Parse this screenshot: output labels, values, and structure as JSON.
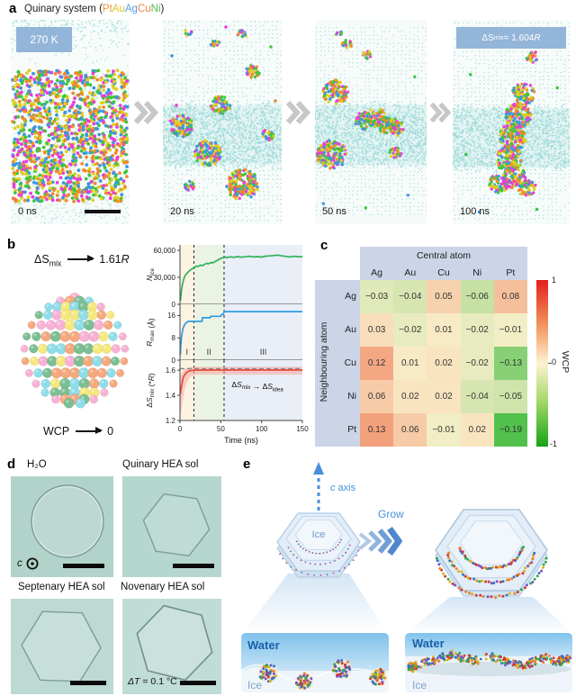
{
  "panel_a": {
    "label": "a",
    "title_prefix": "Quinary system (",
    "title_suffix": ")",
    "elements": [
      {
        "symbol": "Pt",
        "color": "#f0953e"
      },
      {
        "symbol": "Au",
        "color": "#dfc32a"
      },
      {
        "symbol": "Ag",
        "color": "#58a0e2"
      },
      {
        "symbol": "Cu",
        "color": "#ee8444"
      },
      {
        "symbol": "Ni",
        "color": "#4dbd4f"
      }
    ],
    "temperature_badge": "270 K",
    "entropy_badge": {
      "base": "ΔS",
      "sub": "mix",
      "rest": " = 1.604",
      "r": "R"
    },
    "snapshots": [
      {
        "time": "0 ns"
      },
      {
        "time": "20 ns"
      },
      {
        "time": "50 ns"
      },
      {
        "time": "100 ns"
      }
    ]
  },
  "panel_b": {
    "label": "b",
    "entropy": {
      "base": "ΔS",
      "sub": "mix",
      "value": "1.61",
      "r": "R"
    },
    "wcp": {
      "label": "WCP",
      "value": "0"
    }
  },
  "panel_c": {
    "label": "c"
  },
  "panel_d": {
    "label": "d",
    "images": [
      {
        "title": "H₂O"
      },
      {
        "title": "Quinary HEA sol"
      },
      {
        "title": "Septenary HEA sol"
      },
      {
        "title": "Novenary HEA sol"
      }
    ],
    "c_axis": "c",
    "delta_note": {
      "sym": "ΔT",
      "rest": " = 0.1 °C"
    }
  },
  "panel_e": {
    "label": "e",
    "c_axis": "c axis",
    "grow": "Grow",
    "ice": "Ice",
    "left_inset": {
      "water": "Water",
      "ice": "Ice"
    },
    "right_inset": {
      "water": "Water",
      "ice": "Ice"
    }
  },
  "chart_data": [
    {
      "type": "line",
      "xlabel": "Time (ns)",
      "xlim": [
        0,
        150
      ],
      "xticks": [
        0,
        50,
        100,
        150
      ],
      "region_boundaries_ns": [
        17,
        54
      ],
      "regions": [
        {
          "label": "I",
          "color": "#fdf3e2"
        },
        {
          "label": "II",
          "color": "#ebf3e5"
        },
        {
          "label": "III",
          "color": "#e9eef7"
        }
      ],
      "subplots": [
        {
          "ylabel_parts": [
            {
              "t": "N",
              "i": 1
            },
            {
              "t": "ice",
              "sub": 1
            }
          ],
          "ylim": [
            0,
            66000
          ],
          "yticks": [
            0,
            30000,
            60000
          ],
          "ytick_labels": [
            "0",
            "30,000",
            "60,000"
          ],
          "series": [
            {
              "name": "N_ice",
              "color": "#2eb35a",
              "x": [
                0.5,
                1,
                1.5,
                2,
                3,
                4,
                5,
                6,
                8,
                10,
                12,
                14,
                16,
                18,
                20,
                22,
                25,
                28,
                30,
                33,
                35,
                38,
                40,
                43,
                46,
                48,
                50,
                52,
                55,
                58,
                62,
                66,
                70,
                75,
                80,
                85,
                90,
                95,
                100,
                105,
                110,
                115,
                120,
                125,
                130,
                135,
                140,
                145,
                150
              ],
              "y": [
                4000,
                9000,
                13000,
                17000,
                22000,
                26000,
                29000,
                31500,
                34000,
                36000,
                37500,
                39000,
                40000,
                41000,
                42500,
                42000,
                43500,
                43000,
                44500,
                45500,
                45000,
                46500,
                46000,
                47500,
                49000,
                50000,
                51000,
                51500,
                52500,
                52000,
                52800,
                52200,
                53000,
                52400,
                52800,
                53400,
                52600,
                53000,
                52500,
                53500,
                53800,
                54200,
                54600,
                53800,
                53200,
                52600,
                53400,
                52800,
                53000
              ]
            }
          ]
        },
        {
          "ylabel_parts": [
            {
              "t": "R",
              "i": 1
            },
            {
              "t": "max",
              "sub": 1
            },
            {
              "t": " (Å)"
            }
          ],
          "ylim": [
            0,
            20
          ],
          "yticks": [
            0,
            8,
            16
          ],
          "ytick_labels": [
            "0",
            "8",
            "16"
          ],
          "region_labels": [
            "I",
            "II",
            "III"
          ],
          "series": [
            {
              "name": "R_max",
              "color": "#2e9be6",
              "x": [
                0.4,
                0.8,
                1.2,
                1.8,
                2.5,
                3.2,
                4,
                5,
                6,
                7,
                8,
                10,
                27,
                27.5,
                37,
                37.5,
                50,
                51,
                53,
                54,
                150
              ],
              "y": [
                2,
                4.5,
                6,
                8,
                9.5,
                10.8,
                11.5,
                12.3,
                12.8,
                13.2,
                13.5,
                13.9,
                13.9,
                15.2,
                15.2,
                15.7,
                15.7,
                16.4,
                16.4,
                17.4,
                17.4
              ]
            }
          ]
        },
        {
          "ylabel_parts": [
            {
              "t": "Δ"
            },
            {
              "t": "S",
              "i": 1
            },
            {
              "t": "mix",
              "sub": 1
            },
            {
              "t": " (*"
            },
            {
              "t": "R",
              "i": 1
            },
            {
              "t": ")"
            }
          ],
          "ylim": [
            1.2,
            1.68
          ],
          "yticks": [
            1.2,
            1.4,
            1.6
          ],
          "ytick_labels": [
            "1.2",
            "1.4",
            "1.6"
          ],
          "ideal_line_y": 1.612,
          "annotation_parts": [
            {
              "t": "Δ"
            },
            {
              "t": "S",
              "i": 1
            },
            {
              "t": "mix",
              "sub": 1
            },
            {
              "t": " → "
            },
            {
              "t": "Δ"
            },
            {
              "t": "S",
              "i": 1
            },
            {
              "t": "idea",
              "sub": 1
            }
          ],
          "band": {
            "x": [
              0.4,
              1,
              2,
              3.5,
              5,
              8,
              12,
              20,
              150
            ],
            "upper": [
              1.55,
              1.56,
              1.575,
              1.59,
              1.605,
              1.618,
              1.625,
              1.628,
              1.628
            ],
            "lower": [
              1.24,
              1.26,
              1.3,
              1.36,
              1.43,
              1.5,
              1.545,
              1.565,
              1.565
            ]
          },
          "series": [
            {
              "name": "dS_mix",
              "color": "#e84a3f",
              "x": [
                0.4,
                1,
                1.8,
                2.6,
                3.5,
                5,
                7,
                9,
                12,
                15,
                20,
                150
              ],
              "y": [
                1.41,
                1.44,
                1.47,
                1.5,
                1.53,
                1.555,
                1.575,
                1.586,
                1.595,
                1.599,
                1.601,
                1.601
              ]
            }
          ]
        }
      ]
    },
    {
      "type": "heatmap",
      "col_header": "Central atom",
      "row_header": "Neighbouring atom",
      "columns": [
        "Ag",
        "Au",
        "Cu",
        "Ni",
        "Pt"
      ],
      "rows": [
        "Ag",
        "Au",
        "Cu",
        "Ni",
        "Pt"
      ],
      "values": [
        [
          -0.03,
          -0.04,
          0.05,
          -0.06,
          0.08
        ],
        [
          0.03,
          -0.02,
          0.01,
          -0.02,
          -0.01
        ],
        [
          0.12,
          0.01,
          0.02,
          -0.02,
          -0.13
        ],
        [
          0.06,
          0.02,
          0.02,
          -0.04,
          -0.05
        ],
        [
          0.13,
          0.06,
          -0.01,
          0.02,
          -0.19
        ]
      ],
      "colorbar": {
        "label": "WCP",
        "ticks": [
          "1",
          "0",
          "-1"
        ]
      }
    }
  ]
}
